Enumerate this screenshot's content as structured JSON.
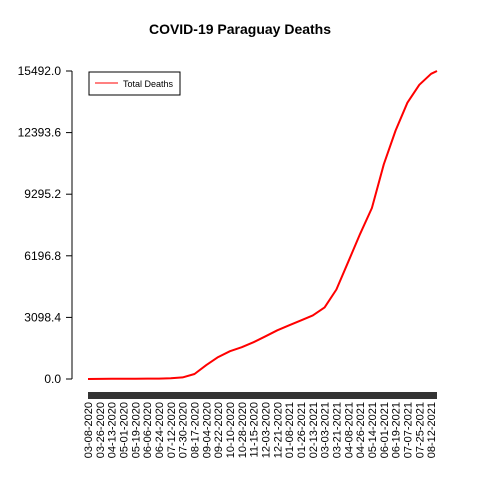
{
  "chart_data": {
    "type": "line",
    "title": "COVID-19 Paraguay Deaths",
    "xlabel": "",
    "ylabel": "",
    "ylim": [
      0,
      15492.0
    ],
    "y_ticks": [
      "0.0",
      "3098.4",
      "6196.8",
      "9295.2",
      "12393.6",
      "15492.0"
    ],
    "x_tick_labels": [
      "03-08-2020",
      "03-26-2020",
      "04-13-2020",
      "05-01-2020",
      "05-19-2020",
      "06-06-2020",
      "06-24-2020",
      "07-12-2020",
      "07-30-2020",
      "08-17-2020",
      "09-04-2020",
      "09-22-2020",
      "10-10-2020",
      "10-28-2020",
      "11-15-2020",
      "12-03-2020",
      "12-21-2020",
      "01-08-2021",
      "01-26-2021",
      "02-13-2021",
      "03-03-2021",
      "03-21-2021",
      "04-08-2021",
      "04-26-2021",
      "05-14-2021",
      "06-01-2021",
      "06-19-2021",
      "07-07-2021",
      "07-25-2021",
      "08-12-2021"
    ],
    "legend": {
      "position": "top-left",
      "entries": [
        "Total Deaths"
      ]
    },
    "grid": false,
    "series": [
      {
        "name": "Total Deaths",
        "color": "#ff0000",
        "x": [
          "03-08-2020",
          "03-26-2020",
          "04-13-2020",
          "05-01-2020",
          "05-19-2020",
          "06-06-2020",
          "06-24-2020",
          "07-12-2020",
          "07-30-2020",
          "08-17-2020",
          "09-04-2020",
          "09-22-2020",
          "10-10-2020",
          "10-28-2020",
          "11-15-2020",
          "12-03-2020",
          "12-21-2020",
          "01-08-2021",
          "01-26-2021",
          "02-13-2021",
          "03-03-2021",
          "03-21-2021",
          "04-08-2021",
          "04-26-2021",
          "05-14-2021",
          "06-01-2021",
          "06-19-2021",
          "07-07-2021",
          "07-25-2021",
          "08-12-2021",
          "08-21-2021"
        ],
        "values": [
          0,
          5,
          10,
          12,
          15,
          18,
          22,
          35,
          80,
          250,
          700,
          1100,
          1400,
          1600,
          1850,
          2150,
          2450,
          2700,
          2950,
          3200,
          3600,
          4500,
          5900,
          7300,
          8600,
          10800,
          12500,
          13900,
          14800,
          15350,
          15492
        ]
      }
    ]
  }
}
